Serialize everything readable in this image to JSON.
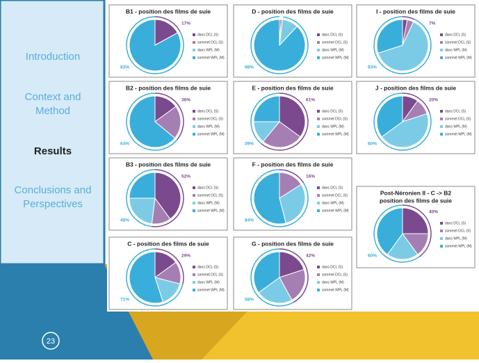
{
  "nav": [
    "Introduction",
    "Context and Method",
    "Results",
    "Conclusions and Perspectives"
  ],
  "slide_number": "23",
  "legend_labels": [
    "dans DCL (S)",
    "sommet DCL (S)",
    "dans WPL (M)",
    "sommet WPL (M)"
  ],
  "segment_colors": [
    "#7b4a8e",
    "#a57fb3",
    "#7ccbe6",
    "#3aaedb"
  ],
  "chart_data": [
    {
      "type": "pie",
      "title": "B1 - position des films de suie",
      "values": [
        17,
        0,
        0,
        83
      ],
      "s_total": {
        "value": 17,
        "label": "17%"
      },
      "m_total": {
        "value": 83,
        "label": "83%"
      }
    },
    {
      "type": "pie",
      "title": "D - position des films de suie",
      "values": [
        1,
        1,
        10,
        88
      ],
      "m_total": {
        "value": 98,
        "label": "98%"
      }
    },
    {
      "type": "pie",
      "title": "I - position des films de suie",
      "values": [
        3,
        4,
        63,
        30
      ],
      "s_total": {
        "value": 7,
        "label": "7%"
      },
      "m_total": {
        "value": 93,
        "label": "93%"
      }
    },
    {
      "type": "pie",
      "title": "B2 - position des films de suie",
      "values": [
        15,
        21,
        0,
        64
      ],
      "s_total": {
        "value": 36,
        "label": "36%"
      },
      "m_total": {
        "value": 64,
        "label": "64%"
      }
    },
    {
      "type": "pie",
      "title": "E - position des films de suie",
      "values": [
        35,
        26,
        14,
        25
      ],
      "s_total": {
        "value": 61,
        "label": "61%"
      },
      "m_total": {
        "value": 39,
        "label": "39%"
      }
    },
    {
      "type": "pie",
      "title": "J - position des films de suie",
      "values": [
        10,
        10,
        45,
        35
      ],
      "s_total": {
        "value": 20,
        "label": "20%"
      },
      "m_total": {
        "value": 80,
        "label": "80%"
      }
    },
    {
      "type": "pie",
      "title": "B3 - position des films de suie",
      "values": [
        40,
        12,
        23,
        25
      ],
      "s_total": {
        "value": 52,
        "label": "52%"
      },
      "m_total": {
        "value": 48,
        "label": "48%"
      }
    },
    {
      "type": "pie",
      "title": "F - position des films de suie",
      "values": [
        0,
        16,
        30,
        54
      ],
      "s_total": {
        "value": 16,
        "label": "16%"
      },
      "m_total": {
        "value": 84,
        "label": "84%"
      }
    },
    {
      "type": "pie",
      "title": "Post-Néronien II - C -> B2",
      "subtitle": "position des films de suie",
      "values": [
        25,
        15,
        20,
        40
      ],
      "s_total": {
        "value": 40,
        "label": "40%"
      },
      "m_total": {
        "value": 60,
        "label": "60%"
      }
    },
    {
      "type": "pie",
      "title": "C - position des films de suie",
      "values": [
        15,
        14,
        16,
        55
      ],
      "s_total": {
        "value": 29,
        "label": "29%"
      },
      "m_total": {
        "value": 71,
        "label": "71%"
      }
    },
    {
      "type": "pie",
      "title": "G - position des films de suie",
      "values": [
        20,
        22,
        23,
        35
      ],
      "s_total": {
        "value": 42,
        "label": "42%"
      },
      "m_total": {
        "value": 58,
        "label": "58%"
      }
    }
  ]
}
